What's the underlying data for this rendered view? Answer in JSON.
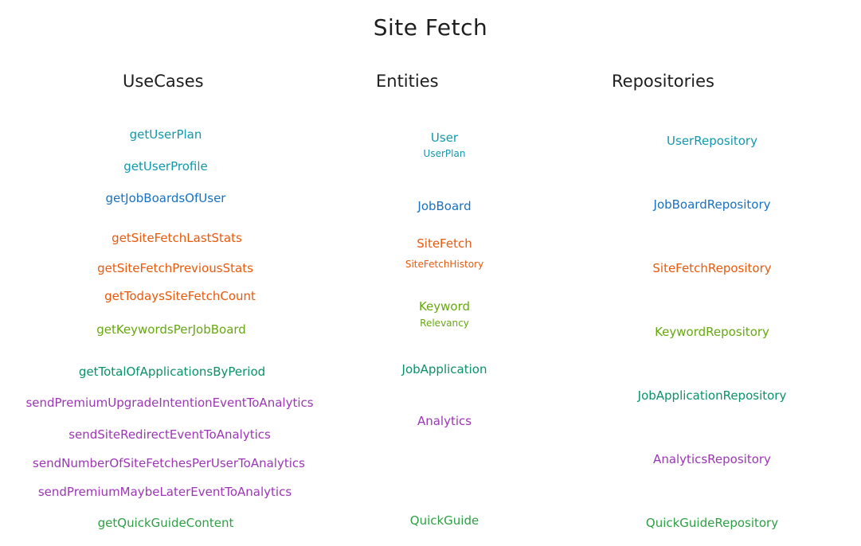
{
  "title": "Site Fetch",
  "columns": {
    "usecases": {
      "header": "UseCases"
    },
    "entities": {
      "header": "Entities"
    },
    "repositories": {
      "header": "Repositories"
    }
  },
  "colors": {
    "user": "#1971c2",
    "user_profile": "#1098ad",
    "site_fetch": "#e8590c",
    "keyword": "#66a80f",
    "job_application": "#099268",
    "analytics": "#9c36b5",
    "quick_guide": "#2f9e44"
  },
  "usecases": [
    {
      "label": "getUserPlan",
      "group": "user_profile"
    },
    {
      "label": "getUserProfile",
      "group": "user_profile"
    },
    {
      "label": "getJobBoardsOfUser",
      "group": "user"
    },
    {
      "label": "getSiteFetchLastStats",
      "group": "site_fetch"
    },
    {
      "label": "getSiteFetchPreviousStats",
      "group": "site_fetch"
    },
    {
      "label": "getTodaysSiteFetchCount",
      "group": "site_fetch"
    },
    {
      "label": "getKeywordsPerJobBoard",
      "group": "keyword"
    },
    {
      "label": "getTotalOfApplicationsByPeriod",
      "group": "job_application"
    },
    {
      "label": "sendPremiumUpgradeIntentionEventToAnalytics",
      "group": "analytics"
    },
    {
      "label": "sendSiteRedirectEventToAnalytics",
      "group": "analytics"
    },
    {
      "label": "sendNumberOfSiteFetchesPerUserToAnalytics",
      "group": "analytics"
    },
    {
      "label": "sendPremiumMaybeLaterEventToAnalytics",
      "group": "analytics"
    },
    {
      "label": "getQuickGuideContent",
      "group": "quick_guide"
    }
  ],
  "entities": [
    {
      "label": "User",
      "group": "user_profile"
    },
    {
      "label": "UserPlan",
      "group": "user_profile"
    },
    {
      "label": "JobBoard",
      "group": "user"
    },
    {
      "label": "SiteFetch",
      "group": "site_fetch"
    },
    {
      "label": "SiteFetchHistory",
      "group": "site_fetch"
    },
    {
      "label": "Keyword",
      "group": "keyword"
    },
    {
      "label": "Relevancy",
      "group": "keyword"
    },
    {
      "label": "JobApplication",
      "group": "job_application"
    },
    {
      "label": "Analytics",
      "group": "analytics"
    },
    {
      "label": "QuickGuide",
      "group": "quick_guide"
    }
  ],
  "repositories": [
    {
      "label": "UserRepository",
      "group": "user_profile"
    },
    {
      "label": "JobBoardRepository",
      "group": "user"
    },
    {
      "label": "SiteFetchRepository",
      "group": "site_fetch"
    },
    {
      "label": "KeywordRepository",
      "group": "keyword"
    },
    {
      "label": "JobApplicationRepository",
      "group": "job_application"
    },
    {
      "label": "AnalyticsRepository",
      "group": "analytics"
    },
    {
      "label": "QuickGuideRepository",
      "group": "quick_guide"
    }
  ]
}
